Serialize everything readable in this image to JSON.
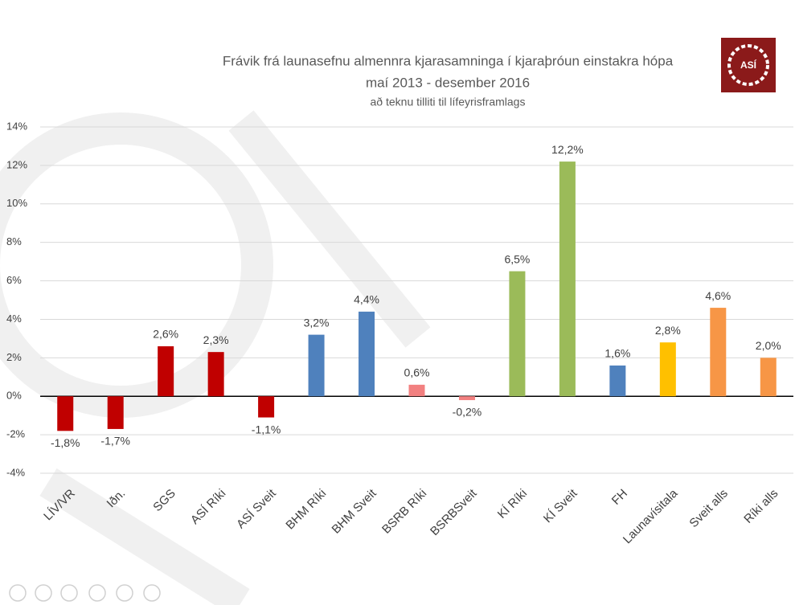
{
  "logo": {
    "text": "ASÍ"
  },
  "chart_data": {
    "type": "bar",
    "title": "Frávik frá launasefnu almennra kjarasamninga í kjaraþróun einstakra hópa",
    "subtitle": "maí 2013 - desember 2016",
    "caption": "að teknu tilliti til lífeyrisframlags",
    "categories": [
      "LÍV/VR",
      "Iðn.",
      "SGS",
      "ASÍ Ríki",
      "ASÍ Sveit",
      "BHM Ríki",
      "BHM Sveit",
      "BSRB Ríki",
      "BSRBSveit",
      "KÍ Ríki",
      "KÍ Sveit",
      "FH",
      "Launavísitala",
      "Sveit alls",
      "Ríki alls"
    ],
    "values": [
      -1.8,
      -1.7,
      2.6,
      2.3,
      -1.1,
      3.2,
      4.4,
      0.6,
      -0.2,
      6.5,
      12.2,
      1.6,
      2.8,
      4.6,
      2.0
    ],
    "value_labels": [
      "-1,8%",
      "-1,7%",
      "2,6%",
      "2,3%",
      "-1,1%",
      "3,2%",
      "4,4%",
      "0,6%",
      "-0,2%",
      "6,5%",
      "12,2%",
      "1,6%",
      "2,8%",
      "4,6%",
      "2,0%"
    ],
    "colors": [
      "#c00000",
      "#c00000",
      "#c00000",
      "#c00000",
      "#c00000",
      "#4f81bd",
      "#4f81bd",
      "#f28080",
      "#f28080",
      "#9bbb59",
      "#9bbb59",
      "#4f81bd",
      "#ffc000",
      "#f79646",
      "#f79646"
    ],
    "ylim": [
      -4,
      14
    ],
    "yticks": [
      {
        "value": -4,
        "label": "-4%"
      },
      {
        "value": -2,
        "label": "-2%"
      },
      {
        "value": 0,
        "label": "0%"
      },
      {
        "value": 2,
        "label": "2%"
      },
      {
        "value": 4,
        "label": "4%"
      },
      {
        "value": 6,
        "label": "6%"
      },
      {
        "value": 8,
        "label": "8%"
      },
      {
        "value": 10,
        "label": "10%"
      },
      {
        "value": 12,
        "label": "12%"
      },
      {
        "value": 14,
        "label": "14%"
      }
    ],
    "grid": true
  }
}
